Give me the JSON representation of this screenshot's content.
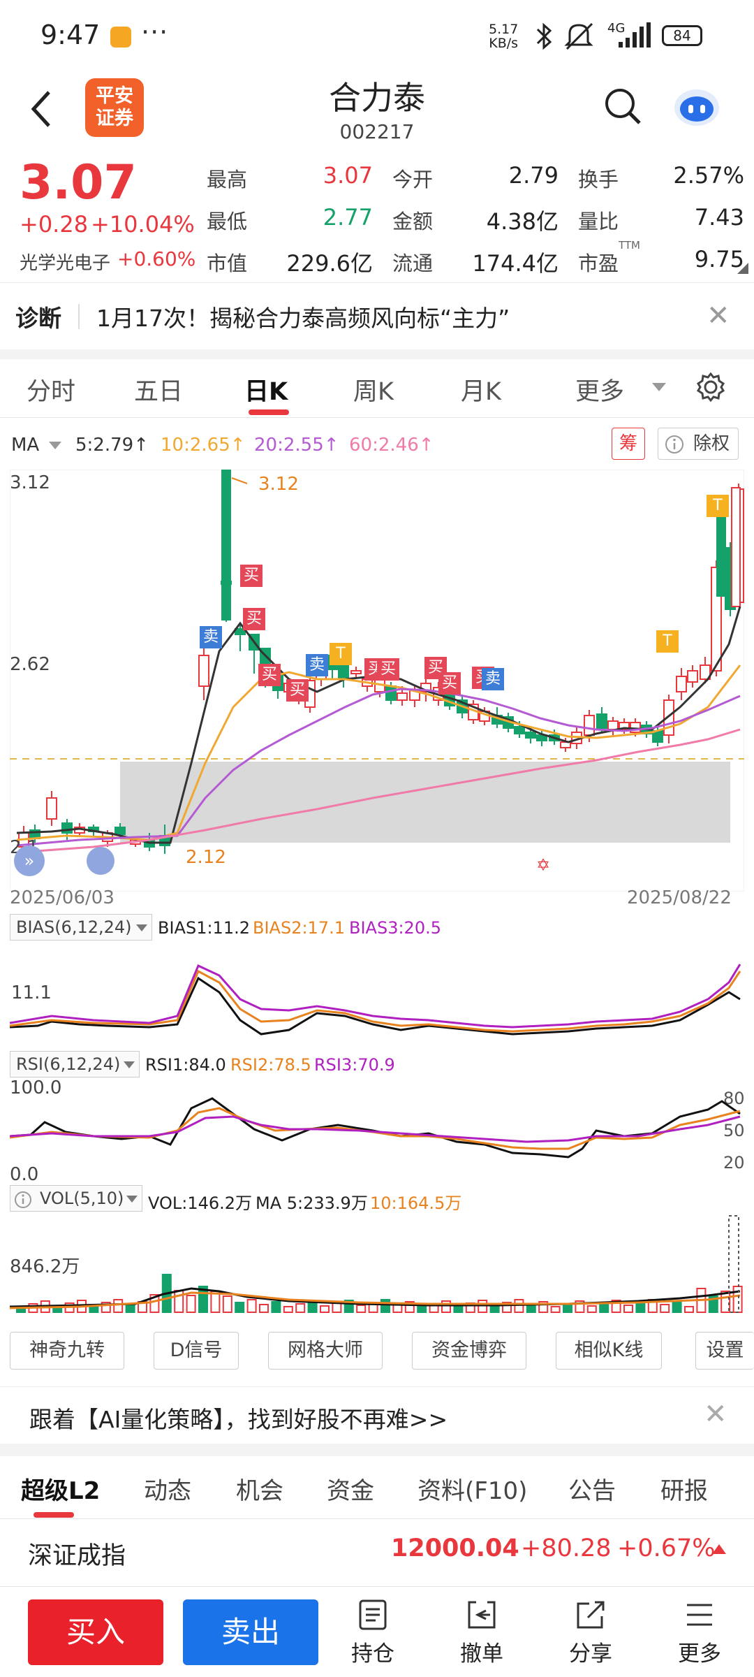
{
  "status_bar": {
    "time": "9:47",
    "dots": "···",
    "speed_top": "5.17",
    "speed_bottom": "KB/s",
    "network": "4G",
    "battery": "84"
  },
  "header": {
    "brand_line1": "平安",
    "brand_line2": "证券",
    "stock_name": "合力泰",
    "stock_code": "002217"
  },
  "quote": {
    "price": "3.07",
    "change_abs": "+0.28",
    "change_pct": "+10.04%",
    "sector_name": "光学光电子",
    "sector_change": "+0.60%",
    "fields": [
      {
        "label": "最高",
        "value": "3.07",
        "color": "#e8373d"
      },
      {
        "label": "今开",
        "value": "2.79",
        "color": "#222222"
      },
      {
        "label": "换手",
        "value": "2.57%",
        "color": "#222222"
      },
      {
        "label": "最低",
        "value": "2.77",
        "color": "#15a16a"
      },
      {
        "label": "金额",
        "value": "4.38亿",
        "color": "#222222"
      },
      {
        "label": "量比",
        "value": "7.43",
        "color": "#222222"
      },
      {
        "label": "市值",
        "value": "229.6亿",
        "color": "#222222"
      },
      {
        "label": "流通",
        "value": "174.4亿",
        "color": "#222222"
      },
      {
        "label": "市盈",
        "value": "9.75",
        "color": "#222222"
      }
    ],
    "ttm_label": "TTM"
  },
  "diagnosis": {
    "title": "诊断",
    "text": "1月17次！揭秘合力泰高频风向标“主力”",
    "close": "✕"
  },
  "chart_tabs": [
    "分时",
    "五日",
    "日K",
    "周K",
    "月K",
    "更多"
  ],
  "ma_legend": {
    "label": "MA",
    "items": [
      {
        "text": "5:2.79↑",
        "color": "#333333"
      },
      {
        "text": "10:2.65↑",
        "color": "#f0a830"
      },
      {
        "text": "20:2.55↑",
        "color": "#b45ad2"
      },
      {
        "text": "60:2.46↑",
        "color": "#f07aa8"
      }
    ],
    "chip_chou": "筹",
    "chip_chuquan": "除权"
  },
  "kline_labels": {
    "y_top": "3.12",
    "y_mid": "2.62",
    "y_bottom": "2.1",
    "high_note": "3.12",
    "low_note": "2.12",
    "date_start": "2025/06/03",
    "date_end": "2025/08/22",
    "markers": [
      {
        "text": "买",
        "type": "buy"
      },
      {
        "text": "买",
        "type": "buy"
      },
      {
        "text": "买",
        "type": "buy"
      },
      {
        "text": "买",
        "type": "buy"
      },
      {
        "text": "买",
        "type": "buy"
      },
      {
        "text": "买",
        "type": "buy"
      },
      {
        "text": "买",
        "type": "buy"
      },
      {
        "text": "买",
        "type": "buy"
      },
      {
        "text": "买",
        "type": "buy"
      },
      {
        "text": "卖",
        "type": "sell"
      },
      {
        "text": "卖",
        "type": "sell"
      },
      {
        "text": "卖",
        "type": "sell"
      },
      {
        "text": "T",
        "type": "t"
      },
      {
        "text": "T",
        "type": "t"
      },
      {
        "text": "T",
        "type": "t"
      }
    ]
  },
  "bias": {
    "tag": "BIAS(6,12,24)",
    "v1": "BIAS1:11.2",
    "v2": "BIAS2:17.1",
    "v3": "BIAS3:20.5",
    "axis": "11.1"
  },
  "rsi": {
    "tag": "RSI(6,12,24)",
    "v1": "RSI1:84.0",
    "v2": "RSI2:78.5",
    "v3": "RSI3:70.9",
    "axis_top": "100.0",
    "axis_bottom": "0.0",
    "right_80": "80",
    "right_50": "50",
    "right_20": "20"
  },
  "vol": {
    "tag": "VOL(5,10)",
    "v1": "VOL:146.2万",
    "v2": "MA 5:233.9万",
    "v3": "10:164.5万",
    "axis": "846.2万"
  },
  "tools": [
    "神奇九转",
    "D信号",
    "网格大师",
    "资金博弈",
    "相似K线",
    "设置"
  ],
  "promo": {
    "text": "跟着【AI量化策略】，找到好股不再难>>",
    "close": "✕"
  },
  "info_tabs": [
    "超级L2",
    "动态",
    "机会",
    "资金",
    "资料(F10)",
    "公告",
    "研报"
  ],
  "index": {
    "name": "深证成指",
    "value": "12000.04",
    "change": "+80.28",
    "pct": "+0.67%"
  },
  "actions": {
    "buy": "买入",
    "sell": "卖出",
    "items": [
      "持仓",
      "撤单",
      "分享",
      "更多"
    ]
  },
  "colors": {
    "up": "#e8373d",
    "down": "#15a16a",
    "buy_btn": "#e8212b",
    "sell_btn": "#1a73e8"
  }
}
